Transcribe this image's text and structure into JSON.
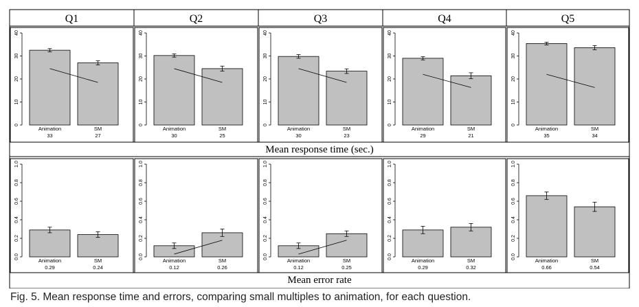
{
  "figure": {
    "questions": [
      "Q1",
      "Q2",
      "Q3",
      "Q4",
      "Q5"
    ],
    "row_labels": [
      "Mean response time (sec.)",
      "Mean error rate"
    ]
  },
  "caption": "Fig. 5.  Mean response time and errors, comparing small multiples to animation, for each question.",
  "chart_data": [
    {
      "type": "bar",
      "row_label": "Mean response time (sec.)",
      "categories": [
        "Animation",
        "SM"
      ],
      "ylim": [
        0,
        40
      ],
      "yticks": [
        "0",
        "10",
        "20",
        "30",
        "40"
      ],
      "panels": [
        {
          "title": "Q1",
          "values": [
            32.5,
            27.0
          ],
          "errors": [
            0.7,
            0.9
          ],
          "labels": [
            "33",
            "27"
          ],
          "connector": [
            24.5,
            18.5
          ]
        },
        {
          "title": "Q2",
          "values": [
            30.2,
            24.5
          ],
          "errors": [
            0.7,
            1.1
          ],
          "labels": [
            "30",
            "25"
          ],
          "connector": [
            24.5,
            18.5
          ]
        },
        {
          "title": "Q3",
          "values": [
            29.8,
            23.4
          ],
          "errors": [
            0.8,
            1.0
          ],
          "labels": [
            "30",
            "23"
          ],
          "connector": [
            24.5,
            18.5
          ]
        },
        {
          "title": "Q4",
          "values": [
            29.0,
            21.4
          ],
          "errors": [
            0.7,
            1.3
          ],
          "labels": [
            "29",
            "21"
          ],
          "connector": [
            22.0,
            16.3
          ]
        },
        {
          "title": "Q5",
          "values": [
            35.4,
            33.6
          ],
          "errors": [
            0.6,
            0.9
          ],
          "labels": [
            "35",
            "34"
          ],
          "connector": [
            22.0,
            16.3
          ]
        }
      ]
    },
    {
      "type": "bar",
      "row_label": "Mean error rate",
      "categories": [
        "Animation",
        "SM"
      ],
      "ylim": [
        0,
        1
      ],
      "yticks": [
        "0.0",
        "0.2",
        "0.4",
        "0.6",
        "0.8",
        "1.0"
      ],
      "panels": [
        {
          "title": "Q1",
          "values": [
            0.29,
            0.24
          ],
          "errors": [
            0.03,
            0.03
          ],
          "labels": [
            "0.29",
            "0.24"
          ],
          "connector": null
        },
        {
          "title": "Q2",
          "values": [
            0.12,
            0.26
          ],
          "errors": [
            0.03,
            0.04
          ],
          "labels": [
            "0.12",
            "0.26"
          ],
          "connector": [
            0.03,
            0.18
          ]
        },
        {
          "title": "Q3",
          "values": [
            0.12,
            0.25
          ],
          "errors": [
            0.03,
            0.03
          ],
          "labels": [
            "0.12",
            "0.25"
          ],
          "connector": [
            0.03,
            0.18
          ]
        },
        {
          "title": "Q4",
          "values": [
            0.29,
            0.32
          ],
          "errors": [
            0.04,
            0.04
          ],
          "labels": [
            "0.29",
            "0.32"
          ],
          "connector": null
        },
        {
          "title": "Q5",
          "values": [
            0.66,
            0.54
          ],
          "errors": [
            0.04,
            0.05
          ],
          "labels": [
            "0.66",
            "0.54"
          ],
          "connector": null
        }
      ]
    }
  ]
}
